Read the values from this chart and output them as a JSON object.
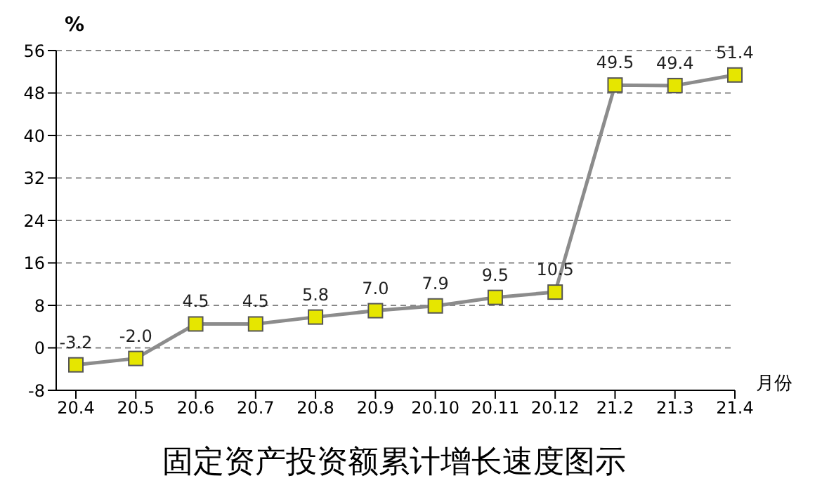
{
  "chart_data": {
    "type": "line",
    "title": "固定资产投资额累计增长速度图示",
    "xlabel": "月份",
    "ylabel": "%",
    "categories": [
      "20.4",
      "20.5",
      "20.6",
      "20.7",
      "20.8",
      "20.9",
      "20.10",
      "20.11",
      "20.12",
      "21.2",
      "21.3",
      "21.4"
    ],
    "series": [
      {
        "color": "#8c8c8c",
        "values": [
          -3.2,
          -2.0,
          4.5,
          4.5,
          5.8,
          7.0,
          7.9,
          9.5,
          10.5,
          49.5,
          49.4,
          51.4
        ],
        "value_labels": [
          "-3.2",
          "-2.0",
          "4.5",
          "4.5",
          "5.8",
          "7.0",
          "7.9",
          "9.5",
          "10.5",
          "49.5",
          "49.4",
          "51.4"
        ]
      }
    ],
    "ylim": [
      -8,
      56
    ],
    "yticks": [
      -8,
      0,
      8,
      16,
      24,
      32,
      40,
      48,
      56
    ],
    "grid": "y",
    "marker": "square",
    "line_style": "solid",
    "legend": false
  }
}
